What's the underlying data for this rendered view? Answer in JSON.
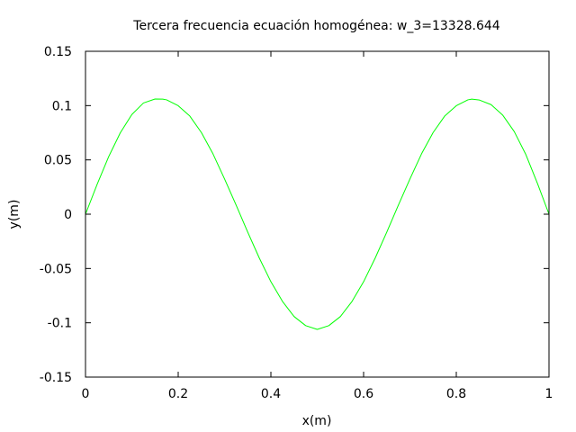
{
  "chart_data": {
    "type": "line",
    "title": "Tercera frecuencia ecuación homogénea: w_3=13328.644",
    "xlabel": "x(m)",
    "ylabel": "y(m)",
    "xlim": [
      0,
      1
    ],
    "ylim": [
      -0.15,
      0.15
    ],
    "x_ticks": [
      0,
      0.2,
      0.4,
      0.6,
      0.8,
      1
    ],
    "x_tick_labels": [
      "0",
      "0.2",
      "0.4",
      "0.6",
      "0.8",
      "1"
    ],
    "y_ticks": [
      0.15,
      0.1,
      0.05,
      0,
      -0.05,
      -0.1,
      -0.15
    ],
    "y_tick_labels": [
      "0.15",
      "0.1",
      "0.05",
      "0",
      "-0.05",
      "-0.1",
      "-0.15"
    ],
    "grid": false,
    "series": [
      {
        "color": "#00ff00",
        "x": [
          0,
          0.025,
          0.05,
          0.075,
          0.1,
          0.125,
          0.15,
          0.1667,
          0.175,
          0.2,
          0.225,
          0.25,
          0.275,
          0.3,
          0.325,
          0.35,
          0.375,
          0.4,
          0.425,
          0.45,
          0.475,
          0.5,
          0.525,
          0.55,
          0.575,
          0.6,
          0.625,
          0.65,
          0.675,
          0.7,
          0.725,
          0.75,
          0.775,
          0.8,
          0.825,
          0.8333,
          0.85,
          0.875,
          0.9,
          0.925,
          0.95,
          0.975,
          1
        ],
        "y": [
          0,
          0.0274,
          0.053,
          0.0749,
          0.0918,
          0.1024,
          0.1061,
          0.106,
          0.1053,
          0.0999,
          0.0904,
          0.0752,
          0.0556,
          0.0325,
          0.0083,
          -0.0165,
          -0.0404,
          -0.0622,
          -0.0803,
          -0.0942,
          -0.1026,
          -0.1061,
          -0.1026,
          -0.0942,
          -0.0803,
          -0.0622,
          -0.0404,
          -0.0165,
          0.0083,
          0.0325,
          0.0556,
          0.0752,
          0.0904,
          0.0999,
          0.1053,
          0.106,
          0.1051,
          0.1009,
          0.0913,
          0.0761,
          0.055,
          0.0284,
          0
        ]
      }
    ]
  }
}
